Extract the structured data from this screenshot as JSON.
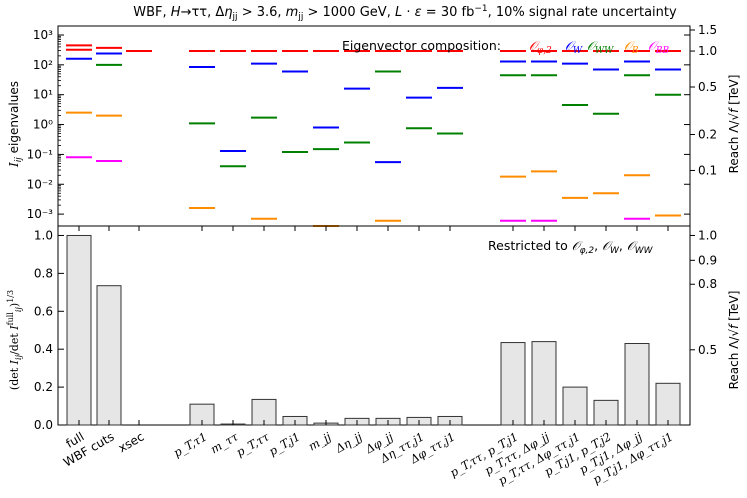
{
  "chart_data": {
    "title": "WBF, H→ττ, Δη_jj > 3.6, m_jj > 1000 GeV, L·ε = 30 fb⁻¹, 10% signal rate uncertainty",
    "type": "bar",
    "categories": [
      "full",
      "WBF cuts",
      "xsec",
      "p_T,τ1",
      "m_ττ",
      "p_T,ττ",
      "p_T,j1",
      "m_jj",
      "Δη_jj",
      "Δφ_jj",
      "Δη_ττ,j1",
      "Δφ_ττ,j1",
      "p_T,ττ, p_T,j1",
      "p_T,ττ, Δφ_jj",
      "p_T,ττ, Δφ_ττ,j1",
      "p_T,j1, p_T,j2",
      "p_T,j1, Δφ_jj",
      "p_T,j1, Δφ_ττ,j1"
    ],
    "top_panel": {
      "ylabel": "I_ij eigenvalues",
      "yscale": "log",
      "ylim": [
        0.0004,
        2000
      ],
      "yticks": [
        "10⁻³",
        "10⁻²",
        "10⁻¹",
        "10⁰",
        "10¹",
        "10²",
        "10³"
      ],
      "y2label": "Reach Λ/√f [TeV]",
      "y2ticks": [
        "0.1",
        "0.2",
        "0.5",
        "1.0",
        "1.5"
      ],
      "legend_title": "Eigenvector composition:",
      "legend": [
        {
          "name": "O_φ,2",
          "color": "#ff0000"
        },
        {
          "name": "O_W",
          "color": "#0000ff"
        },
        {
          "name": "O_WW",
          "color": "#008000"
        },
        {
          "name": "O_B",
          "color": "#ff8c00"
        },
        {
          "name": "O_BB",
          "color": "#ff00ff"
        }
      ],
      "eigenvalues": [
        [
          {
            "v": 450,
            "c": "#ff0000"
          },
          {
            "v": 320,
            "c": "#ff0000"
          },
          {
            "v": 160,
            "c": "#0000ff"
          },
          {
            "v": 2.5,
            "c": "#ff8c00"
          },
          {
            "v": 0.08,
            "c": "#ff00ff"
          }
        ],
        [
          {
            "v": 370,
            "c": "#ff0000"
          },
          {
            "v": 240,
            "c": "#0000ff"
          },
          {
            "v": 100,
            "c": "#008000"
          },
          {
            "v": 2.0,
            "c": "#ff8c00"
          },
          {
            "v": 0.06,
            "c": "#ff00ff"
          }
        ],
        [
          {
            "v": 290,
            "c": "#ff0000"
          }
        ],
        [
          {
            "v": 290,
            "c": "#ff0000"
          },
          {
            "v": 85,
            "c": "#0000ff"
          },
          {
            "v": 1.1,
            "c": "#008000"
          },
          {
            "v": 0.0016,
            "c": "#ff8c00"
          }
        ],
        [
          {
            "v": 290,
            "c": "#ff0000"
          },
          {
            "v": 0.13,
            "c": "#0000ff"
          },
          {
            "v": 0.04,
            "c": "#008000"
          }
        ],
        [
          {
            "v": 290,
            "c": "#ff0000"
          },
          {
            "v": 110,
            "c": "#0000ff"
          },
          {
            "v": 1.7,
            "c": "#008000"
          },
          {
            "v": 0.0007,
            "c": "#ff8c00"
          }
        ],
        [
          {
            "v": 290,
            "c": "#ff0000"
          },
          {
            "v": 60,
            "c": "#0000ff"
          },
          {
            "v": 0.12,
            "c": "#008000"
          }
        ],
        [
          {
            "v": 290,
            "c": "#ff0000"
          },
          {
            "v": 0.8,
            "c": "#0000ff"
          },
          {
            "v": 0.15,
            "c": "#008000"
          },
          {
            "v": 0.0004,
            "c": "#ff8c00"
          }
        ],
        [
          {
            "v": 290,
            "c": "#ff0000"
          },
          {
            "v": 16,
            "c": "#0000ff"
          },
          {
            "v": 0.25,
            "c": "#008000"
          }
        ],
        [
          {
            "v": 290,
            "c": "#ff0000"
          },
          {
            "v": 60,
            "c": "#008000"
          },
          {
            "v": 0.055,
            "c": "#0000ff"
          },
          {
            "v": 0.0006,
            "c": "#ff8c00"
          }
        ],
        [
          {
            "v": 290,
            "c": "#ff0000"
          },
          {
            "v": 8,
            "c": "#0000ff"
          },
          {
            "v": 0.75,
            "c": "#008000"
          }
        ],
        [
          {
            "v": 290,
            "c": "#ff0000"
          },
          {
            "v": 17,
            "c": "#0000ff"
          },
          {
            "v": 0.5,
            "c": "#008000"
          }
        ],
        [
          {
            "v": 290,
            "c": "#ff0000"
          },
          {
            "v": 130,
            "c": "#0000ff"
          },
          {
            "v": 45,
            "c": "#008000"
          },
          {
            "v": 0.018,
            "c": "#ff8c00"
          },
          {
            "v": 0.0006,
            "c": "#ff00ff"
          }
        ],
        [
          {
            "v": 290,
            "c": "#ff0000"
          },
          {
            "v": 130,
            "c": "#0000ff"
          },
          {
            "v": 45,
            "c": "#008000"
          },
          {
            "v": 0.027,
            "c": "#ff8c00"
          },
          {
            "v": 0.0006,
            "c": "#ff00ff"
          }
        ],
        [
          {
            "v": 290,
            "c": "#ff0000"
          },
          {
            "v": 110,
            "c": "#0000ff"
          },
          {
            "v": 4.5,
            "c": "#008000"
          },
          {
            "v": 0.0035,
            "c": "#ff8c00"
          }
        ],
        [
          {
            "v": 290,
            "c": "#ff0000"
          },
          {
            "v": 70,
            "c": "#0000ff"
          },
          {
            "v": 2.3,
            "c": "#008000"
          },
          {
            "v": 0.005,
            "c": "#ff8c00"
          }
        ],
        [
          {
            "v": 290,
            "c": "#ff0000"
          },
          {
            "v": 130,
            "c": "#0000ff"
          },
          {
            "v": 45,
            "c": "#008000"
          },
          {
            "v": 0.02,
            "c": "#ff8c00"
          },
          {
            "v": 0.0007,
            "c": "#ff00ff"
          }
        ],
        [
          {
            "v": 290,
            "c": "#ff0000"
          },
          {
            "v": 70,
            "c": "#0000ff"
          },
          {
            "v": 10,
            "c": "#008000"
          },
          {
            "v": 0.0009,
            "c": "#ff8c00"
          }
        ]
      ]
    },
    "bottom_panel": {
      "ylabel": "(det I_ij / det I_ij^full)^1/3",
      "ylim": [
        0,
        1.05
      ],
      "yticks": [
        "0.0",
        "0.2",
        "0.4",
        "0.6",
        "0.8",
        "1.0"
      ],
      "y2label": "Reach Λ/√f [TeV]",
      "y2ticks": [
        "0.5",
        "0.8",
        "0.9",
        "1.0"
      ],
      "annotation": "Restricted to O_φ,2, O_W, O_WW",
      "values": [
        1.0,
        0.735,
        0,
        0.11,
        0.005,
        0.135,
        0.045,
        0.01,
        0.035,
        0.035,
        0.04,
        0.045,
        0.435,
        0.44,
        0.2,
        0.13,
        0.43,
        0.22
      ]
    }
  }
}
